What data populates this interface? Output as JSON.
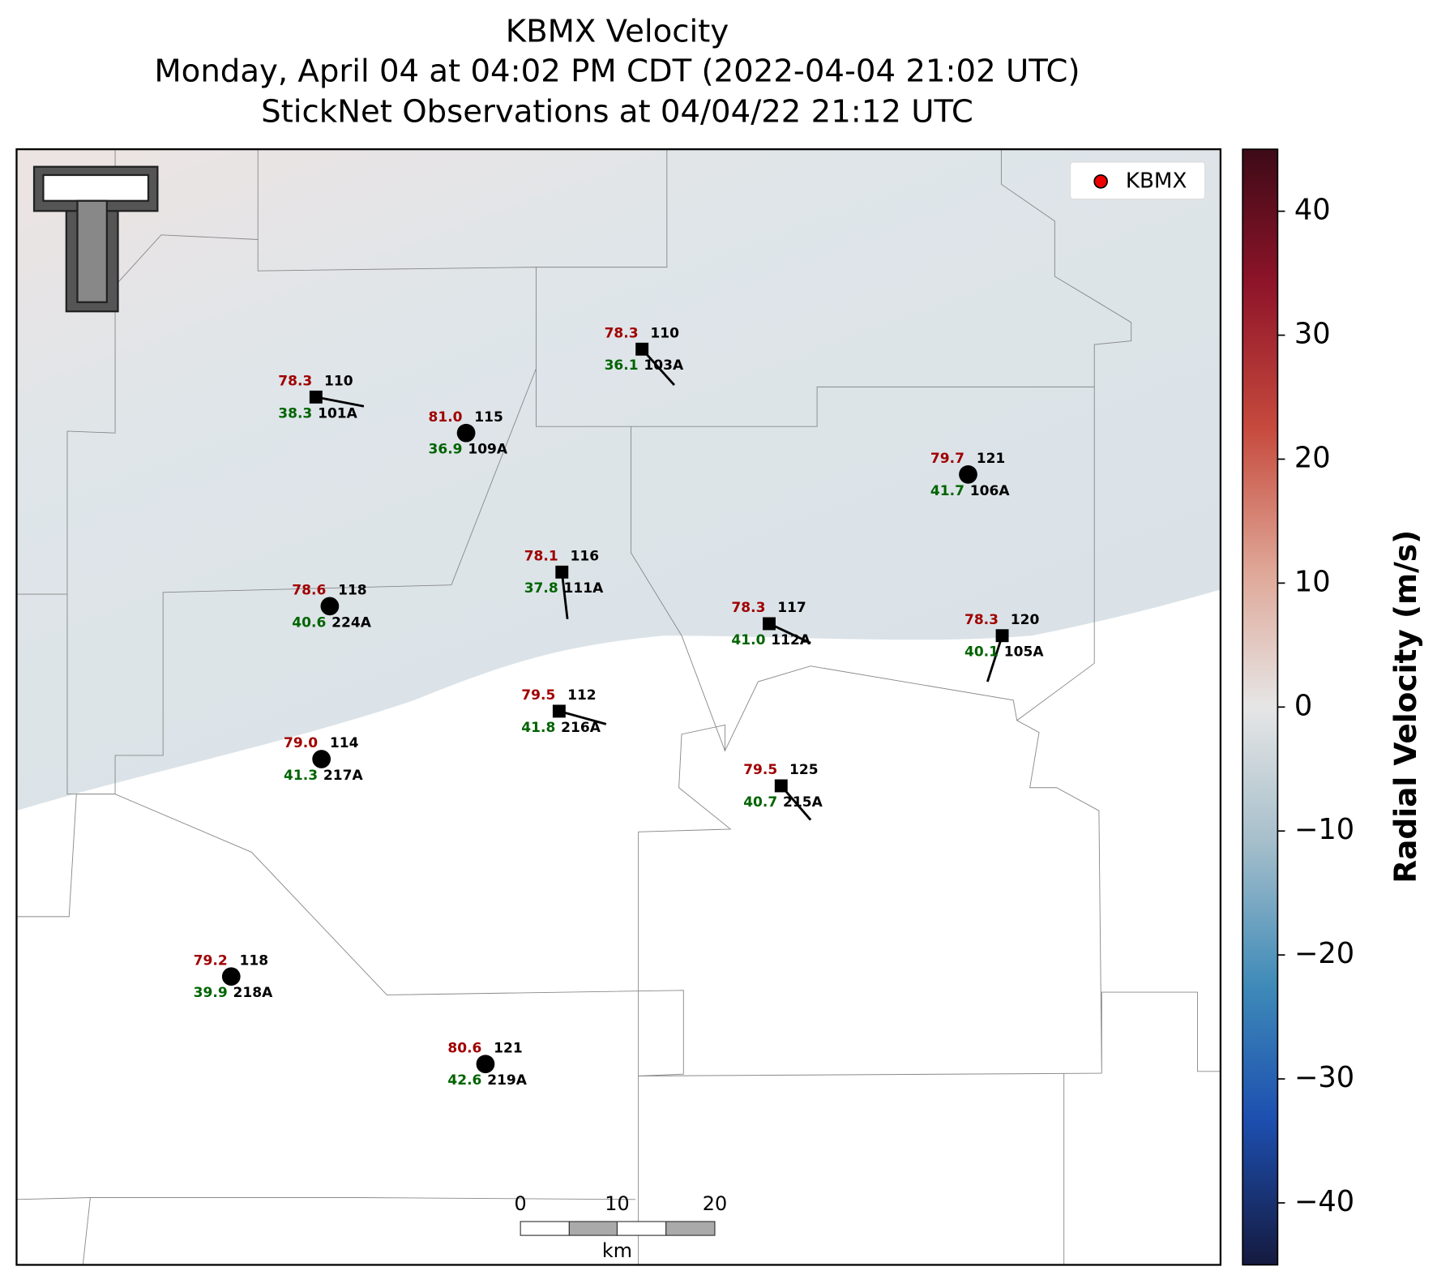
{
  "header": {
    "title": "KBMX Velocity",
    "subtitle": "Monday, April 04 at 04:02 PM CDT (2022-04-04 21:02 UTC)",
    "observations": "StickNet Observations at 04/04/22 21:12 UTC"
  },
  "legend": {
    "label": "KBMX"
  },
  "colorbar": {
    "label": "Radial Velocity (m/s)",
    "lim": [
      -45,
      45
    ],
    "ticks": [
      40,
      30,
      20,
      10,
      0,
      {
        "value": -10,
        "label": "−10"
      },
      {
        "value": -20,
        "label": "−20"
      },
      {
        "value": -30,
        "label": "−30"
      },
      {
        "value": -40,
        "label": "−40"
      }
    ]
  },
  "scalebar": {
    "labels": [
      "0",
      "10",
      "20"
    ],
    "unit": "km"
  },
  "stations": [
    {
      "id": "101A",
      "temp": "78.3",
      "value": "110",
      "dew": "38.3"
    },
    {
      "id": "109A",
      "temp": "81.0",
      "value": "115",
      "dew": "36.9"
    },
    {
      "id": "103A",
      "temp": "78.3",
      "value": "110",
      "dew": "36.1"
    },
    {
      "id": "106A",
      "temp": "79.7",
      "value": "121",
      "dew": "41.7"
    },
    {
      "id": "111A",
      "temp": "78.1",
      "value": "116",
      "dew": "37.8"
    },
    {
      "id": "224A",
      "temp": "78.6",
      "value": "118",
      "dew": "40.6"
    },
    {
      "id": "112A",
      "temp": "78.3",
      "value": "117",
      "dew": "41.0"
    },
    {
      "id": "105A",
      "temp": "78.3",
      "value": "120",
      "dew": "40.1"
    },
    {
      "id": "216A",
      "temp": "79.5",
      "value": "112",
      "dew": "41.8"
    },
    {
      "id": "217A",
      "temp": "79.0",
      "value": "114",
      "dew": "41.3"
    },
    {
      "id": "215A",
      "temp": "79.5",
      "value": "125",
      "dew": "40.7"
    },
    {
      "id": "218A",
      "temp": "79.2",
      "value": "118",
      "dew": "39.9"
    },
    {
      "id": "219A",
      "temp": "80.6",
      "value": "121",
      "dew": "42.6"
    }
  ]
}
